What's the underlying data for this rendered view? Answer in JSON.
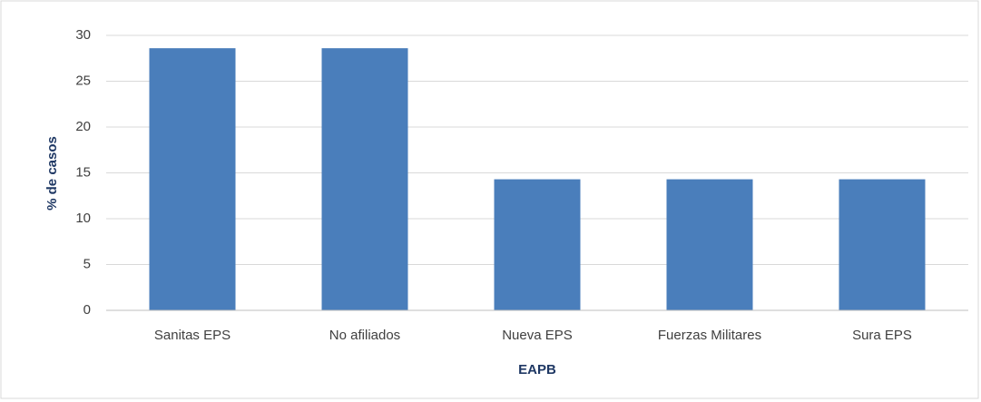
{
  "chart_data": {
    "type": "bar",
    "x_label": "EAPB",
    "y_label": "% de casos",
    "categories": [
      "Sanitas EPS",
      "No afiliados",
      "Nueva EPS",
      "Fuerzas Militares",
      "Sura EPS"
    ],
    "values": [
      28.6,
      28.6,
      14.3,
      14.3,
      14.3
    ],
    "color": "#4a7ebb",
    "ylim": [
      0,
      30
    ],
    "yticks": [
      0,
      5,
      10,
      15,
      20,
      25,
      30
    ],
    "grid": true
  }
}
